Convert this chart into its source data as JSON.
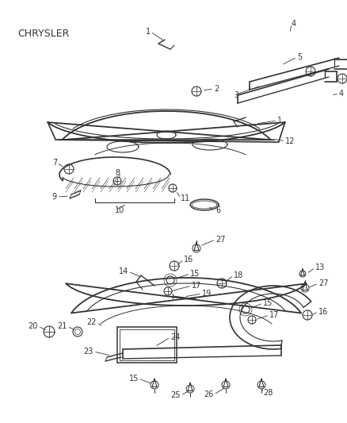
{
  "background_color": "#ffffff",
  "line_color": "#333333",
  "label_color": "#000000",
  "chrysler_text": "CHRYSLER",
  "figsize": [
    4.38,
    5.33
  ],
  "dpi": 100
}
